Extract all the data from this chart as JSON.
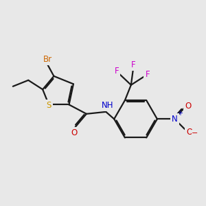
{
  "background_color": "#e8e8e8",
  "bond_color": "#1a1a1a",
  "bond_lw": 1.6,
  "dbo": 0.06,
  "atom_colors": {
    "S": "#cc9900",
    "Br": "#cc6600",
    "O": "#cc0000",
    "N": "#0000cc",
    "F": "#cc00cc",
    "C": "#1a1a1a"
  },
  "fs": 8.5,
  "figsize": [
    3.0,
    3.0
  ],
  "dpi": 100,
  "xlim": [
    0,
    10
  ],
  "ylim": [
    0,
    10
  ]
}
